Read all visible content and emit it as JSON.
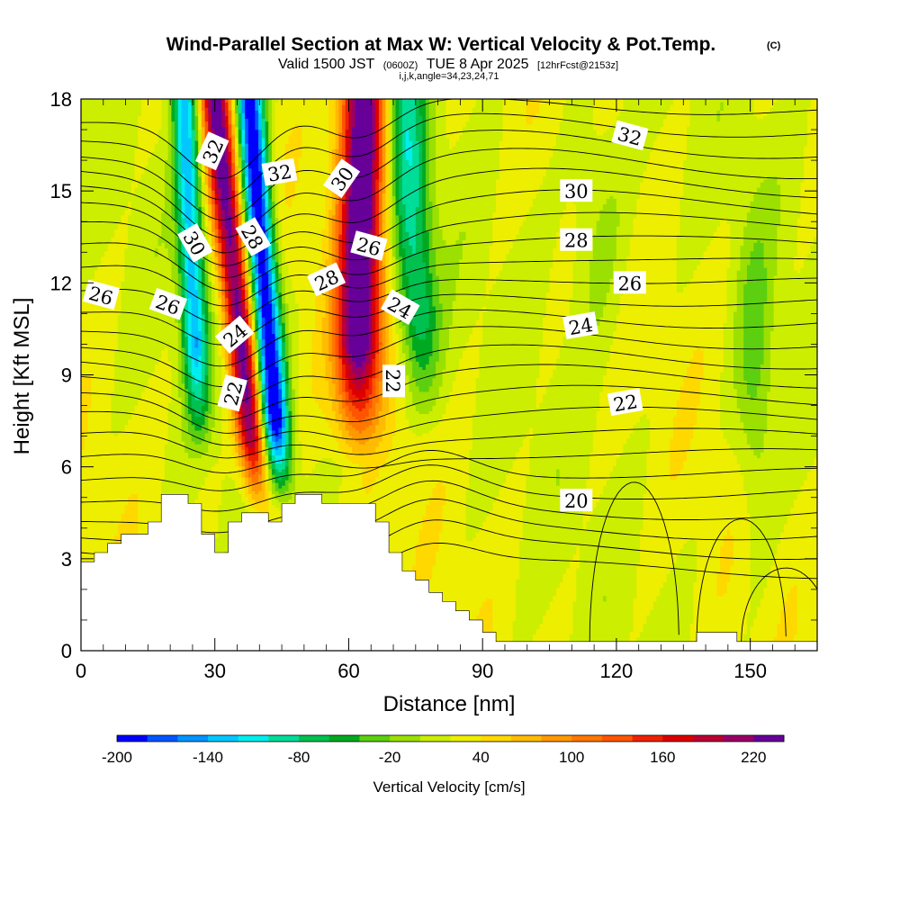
{
  "chart_data": {
    "type": "heatmap",
    "title": "Wind-Parallel Section at Max W: Vertical Velocity & Pot.Temp.",
    "title_mark": "(C)",
    "subtitle_parts": [
      "Valid 1500 JST",
      "(0600Z)",
      "TUE 8 Apr 2025",
      "[12hrFcst@2153z]"
    ],
    "subtitle2": "i,j,k,angle=34,23,24,71",
    "xlabel": "Distance [nm]",
    "ylabel": "Height [Kft MSL]",
    "xlim": [
      0,
      165
    ],
    "ylim": [
      0,
      18
    ],
    "xticks": [
      0,
      30,
      60,
      90,
      120,
      150
    ],
    "yticks": [
      0,
      3,
      6,
      9,
      12,
      15,
      18
    ],
    "colorbar": {
      "label": "Vertical Velocity [cm/s]",
      "min": -200,
      "max": 240,
      "step": 20,
      "tick_labels": [
        "-200",
        "-140",
        "-80",
        "-20",
        "40",
        "100",
        "160",
        "220"
      ],
      "tick_values": [
        -200,
        -140,
        -80,
        -20,
        40,
        100,
        160,
        220
      ],
      "colors": [
        "#0000ff",
        "#0055ff",
        "#0095ff",
        "#00c8ff",
        "#00eeee",
        "#00dd99",
        "#00c050",
        "#00aa20",
        "#5ccf10",
        "#9be000",
        "#ccee00",
        "#eeee00",
        "#ffd800",
        "#ffbb00",
        "#ff9900",
        "#ff7700",
        "#ff5500",
        "#ee2200",
        "#dd0000",
        "#bb0033",
        "#990066",
        "#660099"
      ]
    },
    "terrain": [
      [
        0,
        2.9
      ],
      [
        3,
        2.9
      ],
      [
        3,
        3.2
      ],
      [
        6,
        3.2
      ],
      [
        6,
        3.5
      ],
      [
        9,
        3.5
      ],
      [
        9,
        3.8
      ],
      [
        15,
        3.8
      ],
      [
        15,
        4.2
      ],
      [
        18,
        4.2
      ],
      [
        18,
        5.1
      ],
      [
        24,
        5.1
      ],
      [
        24,
        4.8
      ],
      [
        27,
        4.8
      ],
      [
        27,
        3.8
      ],
      [
        30,
        3.8
      ],
      [
        30,
        3.2
      ],
      [
        33,
        3.2
      ],
      [
        33,
        4.2
      ],
      [
        36,
        4.2
      ],
      [
        36,
        4.5
      ],
      [
        42,
        4.5
      ],
      [
        42,
        4.2
      ],
      [
        45,
        4.2
      ],
      [
        45,
        4.8
      ],
      [
        48,
        4.8
      ],
      [
        48,
        5.1
      ],
      [
        54,
        5.1
      ],
      [
        54,
        4.8
      ],
      [
        66,
        4.8
      ],
      [
        66,
        4.2
      ],
      [
        69,
        4.2
      ],
      [
        69,
        3.2
      ],
      [
        72,
        3.2
      ],
      [
        72,
        2.6
      ],
      [
        75,
        2.6
      ],
      [
        75,
        2.3
      ],
      [
        78,
        2.3
      ],
      [
        78,
        1.9
      ],
      [
        81,
        1.9
      ],
      [
        81,
        1.6
      ],
      [
        84,
        1.6
      ],
      [
        84,
        1.3
      ],
      [
        87,
        1.3
      ],
      [
        87,
        1.0
      ],
      [
        90,
        1.0
      ],
      [
        90,
        0.6
      ],
      [
        93,
        0.6
      ],
      [
        93,
        0.3
      ],
      [
        138,
        0.3
      ],
      [
        138,
        0.6
      ],
      [
        147,
        0.6
      ],
      [
        147,
        0.3
      ],
      [
        165,
        0.3
      ]
    ],
    "isentrope_labels": [
      {
        "text": "32",
        "x": 29.5,
        "y": 16.3,
        "angle": -66
      },
      {
        "text": "32",
        "x": 44.5,
        "y": 15.6,
        "angle": -10
      },
      {
        "text": "30",
        "x": 58.5,
        "y": 15.4,
        "angle": -55
      },
      {
        "text": "32",
        "x": 123,
        "y": 16.8,
        "angle": 15
      },
      {
        "text": "30",
        "x": 111,
        "y": 15.0,
        "angle": 0
      },
      {
        "text": "30",
        "x": 25.5,
        "y": 13.3,
        "angle": 60
      },
      {
        "text": "28",
        "x": 38.5,
        "y": 13.5,
        "angle": 60
      },
      {
        "text": "26",
        "x": 64.5,
        "y": 13.2,
        "angle": 15
      },
      {
        "text": "28",
        "x": 111,
        "y": 13.4,
        "angle": 0
      },
      {
        "text": "26",
        "x": 4.5,
        "y": 11.6,
        "angle": 15
      },
      {
        "text": "26",
        "x": 19.5,
        "y": 11.3,
        "angle": 20
      },
      {
        "text": "28",
        "x": 55,
        "y": 12.1,
        "angle": -25
      },
      {
        "text": "26",
        "x": 123,
        "y": 12.0,
        "angle": 0
      },
      {
        "text": "24",
        "x": 71.5,
        "y": 11.2,
        "angle": 30
      },
      {
        "text": "24",
        "x": 34.5,
        "y": 10.3,
        "angle": -40
      },
      {
        "text": "24",
        "x": 112,
        "y": 10.6,
        "angle": -10
      },
      {
        "text": "22",
        "x": 70,
        "y": 8.8,
        "angle": 90
      },
      {
        "text": "22",
        "x": 34,
        "y": 8.4,
        "angle": -75
      },
      {
        "text": "22",
        "x": 122,
        "y": 8.1,
        "angle": -10
      },
      {
        "text": "20",
        "x": 111,
        "y": 4.9,
        "angle": 0
      }
    ]
  }
}
